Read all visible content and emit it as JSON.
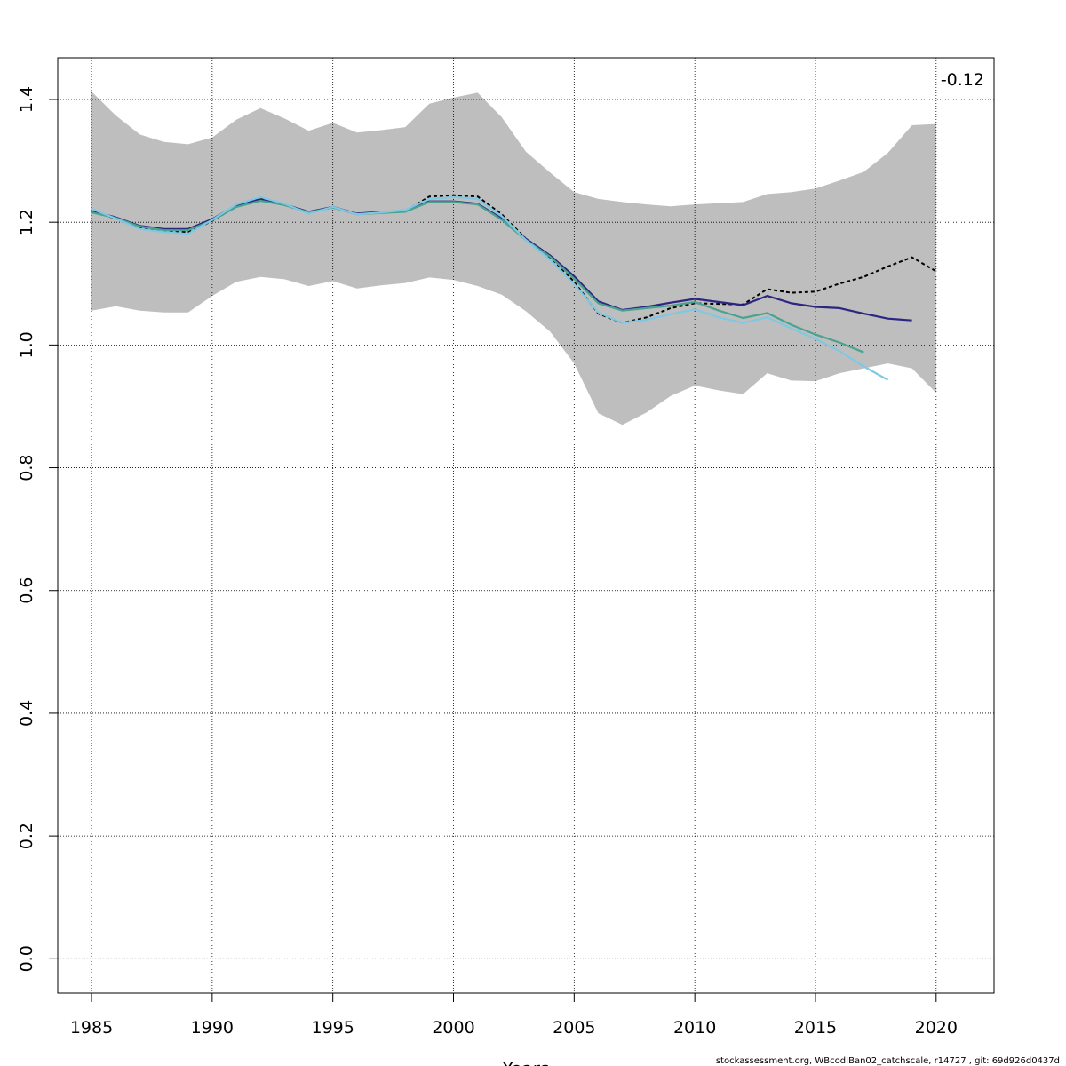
{
  "chart_data": {
    "type": "line",
    "title": "",
    "xlabel": "Years",
    "ylabel": "",
    "xlim": [
      1983.6,
      1122.5
    ],
    "x_range": [
      1983.6,
      2022.4
    ],
    "ylim": [
      -0.056,
      1.468
    ],
    "x_ticks": [
      "1985",
      "1990",
      "1995",
      "2000",
      "2005",
      "2010",
      "2015",
      "2020"
    ],
    "y_ticks": [
      "0.0",
      "0.2",
      "0.4",
      "0.6",
      "0.8",
      "1.0",
      "1.2",
      "1.4"
    ],
    "grid": true,
    "annotation": "-0.12",
    "footer": "stockassessment.org, WBcodIBan02_catchscale, r14727 , git: 69d926d0437d",
    "band": {
      "color": "#bebebe",
      "x": [
        1985,
        1986,
        1987,
        1988,
        1989,
        1990,
        1991,
        1992,
        1993,
        1994,
        1995,
        1996,
        1997,
        1998,
        1999,
        2000,
        2001,
        2002,
        2003,
        2004,
        2005,
        2006,
        2007,
        2008,
        2009,
        2010,
        2011,
        2012,
        2013,
        2014,
        2015,
        2016,
        2017,
        2018,
        2019,
        2020
      ],
      "upper": [
        1.413,
        1.374,
        1.343,
        1.331,
        1.327,
        1.338,
        1.367,
        1.386,
        1.369,
        1.349,
        1.362,
        1.346,
        1.35,
        1.355,
        1.393,
        1.403,
        1.411,
        1.371,
        1.315,
        1.281,
        1.249,
        1.238,
        1.233,
        1.229,
        1.226,
        1.229,
        1.231,
        1.233,
        1.246,
        1.249,
        1.255,
        1.268,
        1.282,
        1.313,
        1.358,
        1.36
      ],
      "lower": [
        1.056,
        1.063,
        1.056,
        1.053,
        1.053,
        1.08,
        1.103,
        1.111,
        1.107,
        1.096,
        1.104,
        1.092,
        1.097,
        1.101,
        1.11,
        1.106,
        1.096,
        1.082,
        1.055,
        1.022,
        0.97,
        0.889,
        0.87,
        0.89,
        0.917,
        0.934,
        0.926,
        0.92,
        0.954,
        0.942,
        0.941,
        0.954,
        0.962,
        0.97,
        0.962,
        0.922
      ]
    },
    "series": [
      {
        "color": "#000000",
        "dashed": true,
        "x": [
          1985,
          1986,
          1987,
          1988,
          1989,
          1990,
          1991,
          1992,
          1993,
          1994,
          1995,
          1996,
          1997,
          1998,
          1999,
          2000,
          2001,
          2002,
          2003,
          2004,
          2005,
          2006,
          2007,
          2008,
          2009,
          2010,
          2011,
          2012,
          2013,
          2014,
          2015,
          2016,
          2017,
          2018,
          2019,
          2020
        ],
        "values": [
          1.218,
          1.206,
          1.191,
          1.186,
          1.184,
          1.202,
          1.226,
          1.24,
          1.228,
          1.216,
          1.224,
          1.214,
          1.216,
          1.218,
          1.242,
          1.244,
          1.242,
          1.213,
          1.173,
          1.142,
          1.103,
          1.051,
          1.036,
          1.045,
          1.06,
          1.068,
          1.067,
          1.066,
          1.091,
          1.085,
          1.087,
          1.1,
          1.111,
          1.128,
          1.143,
          1.12
        ]
      },
      {
        "color": "#2c2582",
        "dashed": false,
        "x": [
          1985,
          1986,
          1987,
          1988,
          1989,
          1990,
          1991,
          1992,
          1993,
          1994,
          1995,
          1996,
          1997,
          1998,
          1999,
          2000,
          2001,
          2002,
          2003,
          2004,
          2005,
          2006,
          2007,
          2008,
          2009,
          2010,
          2011,
          2012,
          2013,
          2014,
          2015,
          2016,
          2017,
          2018,
          2019
        ],
        "values": [
          1.218,
          1.208,
          1.194,
          1.189,
          1.189,
          1.205,
          1.228,
          1.237,
          1.229,
          1.217,
          1.225,
          1.214,
          1.217,
          1.218,
          1.234,
          1.234,
          1.23,
          1.206,
          1.173,
          1.146,
          1.112,
          1.071,
          1.057,
          1.062,
          1.069,
          1.075,
          1.07,
          1.065,
          1.08,
          1.068,
          1.062,
          1.06,
          1.051,
          1.043,
          1.04
        ]
      },
      {
        "color": "#4aa38f",
        "dashed": false,
        "x": [
          1985,
          1986,
          1987,
          1988,
          1989,
          1990,
          1991,
          1992,
          1993,
          1994,
          1995,
          1996,
          1997,
          1998,
          1999,
          2000,
          2001,
          2002,
          2003,
          2004,
          2005,
          2006,
          2007,
          2008,
          2009,
          2010,
          2011,
          2012,
          2013,
          2014,
          2015,
          2016,
          2017
        ],
        "values": [
          1.216,
          1.207,
          1.193,
          1.187,
          1.187,
          1.203,
          1.225,
          1.235,
          1.228,
          1.216,
          1.224,
          1.213,
          1.215,
          1.217,
          1.233,
          1.233,
          1.229,
          1.204,
          1.171,
          1.144,
          1.108,
          1.068,
          1.056,
          1.06,
          1.064,
          1.07,
          1.056,
          1.044,
          1.052,
          1.033,
          1.017,
          1.004,
          0.988
        ]
      },
      {
        "color": "#7ec8e3",
        "dashed": false,
        "x": [
          1985,
          1986,
          1987,
          1988,
          1989,
          1990,
          1991,
          1992,
          1993,
          1994,
          1995,
          1996,
          1997,
          1998,
          1999,
          2000,
          2001,
          2002,
          2003,
          2004,
          2005,
          2006,
          2007,
          2008,
          2009,
          2010,
          2011,
          2012,
          2013,
          2014,
          2015,
          2016,
          2017,
          2018
        ],
        "values": [
          1.222,
          1.206,
          1.189,
          1.184,
          1.181,
          1.204,
          1.229,
          1.241,
          1.23,
          1.214,
          1.225,
          1.213,
          1.216,
          1.22,
          1.238,
          1.241,
          1.238,
          1.21,
          1.171,
          1.139,
          1.099,
          1.053,
          1.036,
          1.041,
          1.05,
          1.058,
          1.045,
          1.036,
          1.045,
          1.027,
          1.01,
          0.99,
          0.965,
          0.943
        ]
      }
    ]
  }
}
